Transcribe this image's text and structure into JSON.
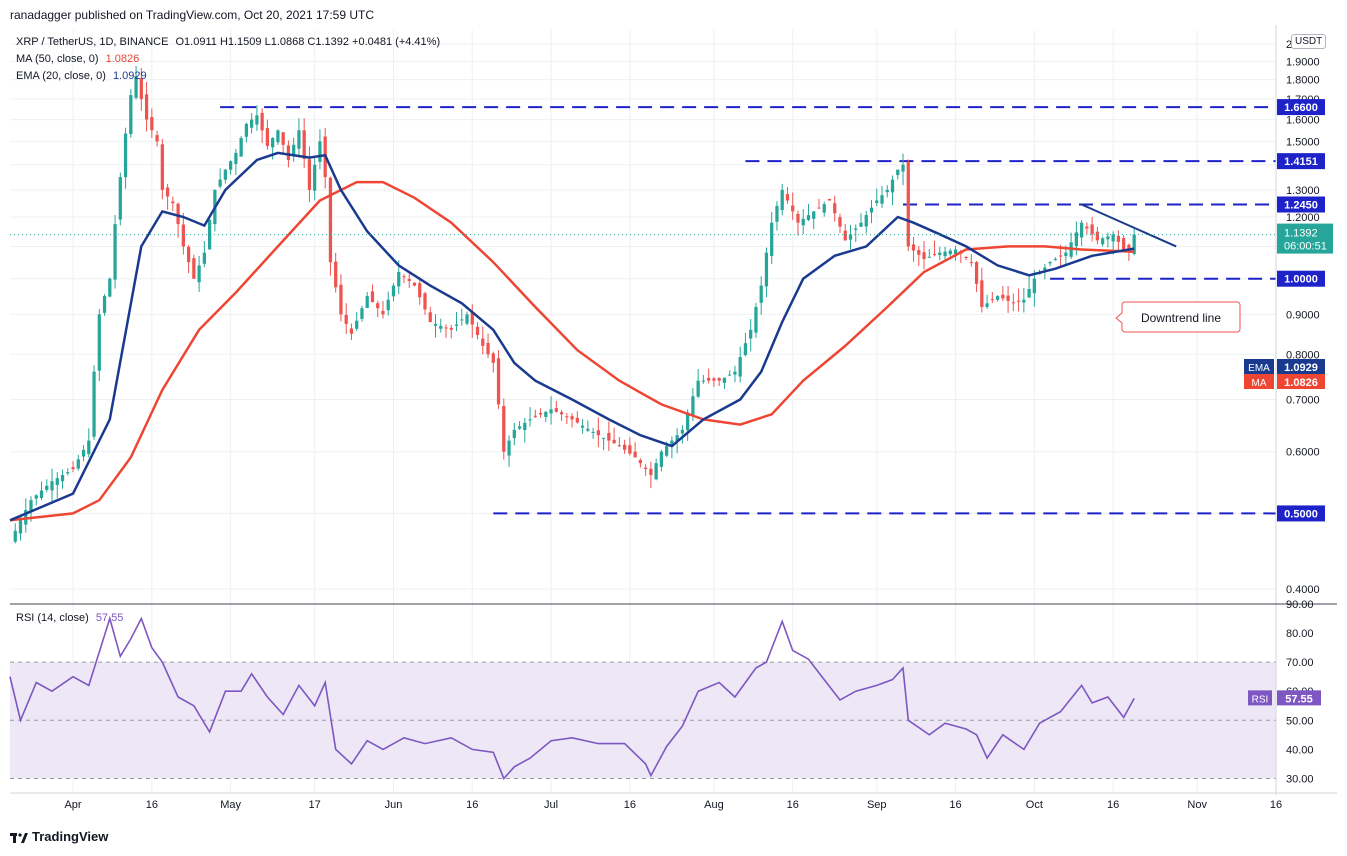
{
  "header": {
    "publisher_line": "ranadagger published on TradingView.com, Oct 20, 2021 17:59 UTC"
  },
  "legend": {
    "symbol": "XRP / TetherUS, 1D, BINANCE",
    "ohlc": "O1.0911 H1.1509 L1.0868 C1.1392 +0.0481 (+4.41%)",
    "ma_label": "MA (50, close, 0)",
    "ma_value": "1.0826",
    "ema_label": "EMA (20, close, 0)",
    "ema_value": "1.0929",
    "rsi_label": "RSI (14, close)",
    "rsi_value": "57.55"
  },
  "currency_badge": "USDT",
  "footer": {
    "brand": "TradingView"
  },
  "colors": {
    "up": "#26a69a",
    "down": "#ef5350",
    "ema": "#1a3a8f",
    "ma": "#ef4634",
    "level": "#1e22c9",
    "trend": "#1a3a8f",
    "rsi": "#7e57c2",
    "rsi_band": "#ede7f6",
    "grid": "#eef0f3",
    "text": "#131722"
  },
  "chart_data": [
    {
      "type": "candlestick",
      "title": "XRP / TetherUS, 1D, BINANCE",
      "ylim": [
        0.4,
        2.0
      ],
      "yscale": "log",
      "y_ticks": [
        "0.4000",
        "0.5000",
        "0.6000",
        "0.7000",
        "0.8000",
        "0.9000",
        "1.0000",
        "1.1000",
        "1.2000",
        "1.3000",
        "1.4000",
        "1.5000",
        "1.6000",
        "1.7000",
        "1.8000",
        "1.9000",
        "2"
      ],
      "x_ticks": [
        "Apr",
        "16",
        "May",
        "17",
        "Jun",
        "16",
        "Jul",
        "16",
        "Aug",
        "16",
        "Sep",
        "16",
        "Oct",
        "16",
        "Nov",
        "16"
      ],
      "x_range": [
        "2021-03-20",
        "2021-11-16"
      ],
      "price_path": [
        [
          "2021-03-20",
          0.46
        ],
        [
          "2021-03-24",
          0.52
        ],
        [
          "2021-03-28",
          0.55
        ],
        [
          "2021-04-01",
          0.57
        ],
        [
          "2021-04-04",
          0.62
        ],
        [
          "2021-04-06",
          0.9
        ],
        [
          "2021-04-08",
          1.0
        ],
        [
          "2021-04-10",
          1.35
        ],
        [
          "2021-04-12",
          1.72
        ],
        [
          "2021-04-13",
          1.82
        ],
        [
          "2021-04-14",
          1.7
        ],
        [
          "2021-04-15",
          1.6
        ],
        [
          "2021-04-17",
          1.5
        ],
        [
          "2021-04-18",
          1.3
        ],
        [
          "2021-04-20",
          1.25
        ],
        [
          "2021-04-22",
          1.1
        ],
        [
          "2021-04-24",
          1.0
        ],
        [
          "2021-04-26",
          1.08
        ],
        [
          "2021-04-28",
          1.3
        ],
        [
          "2021-04-30",
          1.38
        ],
        [
          "2021-05-02",
          1.45
        ],
        [
          "2021-05-04",
          1.58
        ],
        [
          "2021-05-06",
          1.62
        ],
        [
          "2021-05-08",
          1.48
        ],
        [
          "2021-05-10",
          1.55
        ],
        [
          "2021-05-12",
          1.42
        ],
        [
          "2021-05-14",
          1.55
        ],
        [
          "2021-05-16",
          1.3
        ],
        [
          "2021-05-18",
          1.5
        ],
        [
          "2021-05-19",
          1.35
        ],
        [
          "2021-05-20",
          1.05
        ],
        [
          "2021-05-22",
          0.9
        ],
        [
          "2021-05-24",
          0.85
        ],
        [
          "2021-05-27",
          0.95
        ],
        [
          "2021-05-30",
          0.9
        ],
        [
          "2021-06-02",
          1.02
        ],
        [
          "2021-06-05",
          0.98
        ],
        [
          "2021-06-08",
          0.88
        ],
        [
          "2021-06-12",
          0.86
        ],
        [
          "2021-06-15",
          0.9
        ],
        [
          "2021-06-18",
          0.82
        ],
        [
          "2021-06-20",
          0.78
        ],
        [
          "2021-06-22",
          0.6
        ],
        [
          "2021-06-24",
          0.64
        ],
        [
          "2021-06-27",
          0.66
        ],
        [
          "2021-07-01",
          0.68
        ],
        [
          "2021-07-05",
          0.66
        ],
        [
          "2021-07-10",
          0.63
        ],
        [
          "2021-07-14",
          0.61
        ],
        [
          "2021-07-17",
          0.59
        ],
        [
          "2021-07-20",
          0.56
        ],
        [
          "2021-07-22",
          0.6
        ],
        [
          "2021-07-26",
          0.64
        ],
        [
          "2021-07-29",
          0.74
        ],
        [
          "2021-08-02",
          0.74
        ],
        [
          "2021-08-05",
          0.76
        ],
        [
          "2021-08-08",
          0.86
        ],
        [
          "2021-08-10",
          0.98
        ],
        [
          "2021-08-12",
          1.18
        ],
        [
          "2021-08-14",
          1.3
        ],
        [
          "2021-08-17",
          1.18
        ],
        [
          "2021-08-20",
          1.22
        ],
        [
          "2021-08-23",
          1.26
        ],
        [
          "2021-08-26",
          1.12
        ],
        [
          "2021-08-29",
          1.18
        ],
        [
          "2021-09-01",
          1.26
        ],
        [
          "2021-09-03",
          1.3
        ],
        [
          "2021-09-05",
          1.38
        ],
        [
          "2021-09-06",
          1.4
        ],
        [
          "2021-09-07",
          1.1
        ],
        [
          "2021-09-10",
          1.06
        ],
        [
          "2021-09-13",
          1.08
        ],
        [
          "2021-09-16",
          1.09
        ],
        [
          "2021-09-19",
          1.05
        ],
        [
          "2021-09-21",
          0.92
        ],
        [
          "2021-09-24",
          0.95
        ],
        [
          "2021-09-27",
          0.93
        ],
        [
          "2021-09-29",
          0.94
        ],
        [
          "2021-10-01",
          1.0
        ],
        [
          "2021-10-04",
          1.05
        ],
        [
          "2021-10-07",
          1.08
        ],
        [
          "2021-10-10",
          1.18
        ],
        [
          "2021-10-13",
          1.12
        ],
        [
          "2021-10-16",
          1.14
        ],
        [
          "2021-10-18",
          1.09
        ],
        [
          "2021-10-19",
          1.09
        ],
        [
          "2021-10-20",
          1.1392
        ]
      ],
      "ema20": [
        [
          "2021-03-20",
          0.49
        ],
        [
          "2021-04-01",
          0.53
        ],
        [
          "2021-04-08",
          0.66
        ],
        [
          "2021-04-14",
          1.1
        ],
        [
          "2021-04-18",
          1.22
        ],
        [
          "2021-04-22",
          1.2
        ],
        [
          "2021-04-26",
          1.17
        ],
        [
          "2021-04-30",
          1.3
        ],
        [
          "2021-05-06",
          1.42
        ],
        [
          "2021-05-10",
          1.45
        ],
        [
          "2021-05-16",
          1.43
        ],
        [
          "2021-05-19",
          1.44
        ],
        [
          "2021-05-22",
          1.3
        ],
        [
          "2021-05-27",
          1.15
        ],
        [
          "2021-06-02",
          1.04
        ],
        [
          "2021-06-08",
          0.98
        ],
        [
          "2021-06-14",
          0.93
        ],
        [
          "2021-06-20",
          0.86
        ],
        [
          "2021-06-24",
          0.78
        ],
        [
          "2021-06-28",
          0.74
        ],
        [
          "2021-07-05",
          0.7
        ],
        [
          "2021-07-12",
          0.66
        ],
        [
          "2021-07-18",
          0.63
        ],
        [
          "2021-07-24",
          0.61
        ],
        [
          "2021-07-30",
          0.66
        ],
        [
          "2021-08-06",
          0.7
        ],
        [
          "2021-08-10",
          0.76
        ],
        [
          "2021-08-14",
          0.88
        ],
        [
          "2021-08-18",
          1.0
        ],
        [
          "2021-08-24",
          1.07
        ],
        [
          "2021-08-30",
          1.1
        ],
        [
          "2021-09-05",
          1.2
        ],
        [
          "2021-09-08",
          1.18
        ],
        [
          "2021-09-13",
          1.14
        ],
        [
          "2021-09-18",
          1.1
        ],
        [
          "2021-09-24",
          1.04
        ],
        [
          "2021-09-30",
          1.01
        ],
        [
          "2021-10-05",
          1.03
        ],
        [
          "2021-10-12",
          1.07
        ],
        [
          "2021-10-20",
          1.0929
        ]
      ],
      "ma50": [
        [
          "2021-03-20",
          0.49
        ],
        [
          "2021-04-01",
          0.5
        ],
        [
          "2021-04-06",
          0.52
        ],
        [
          "2021-04-12",
          0.59
        ],
        [
          "2021-04-18",
          0.72
        ],
        [
          "2021-04-25",
          0.86
        ],
        [
          "2021-05-02",
          0.96
        ],
        [
          "2021-05-10",
          1.1
        ],
        [
          "2021-05-18",
          1.26
        ],
        [
          "2021-05-25",
          1.33
        ],
        [
          "2021-05-30",
          1.33
        ],
        [
          "2021-06-05",
          1.27
        ],
        [
          "2021-06-12",
          1.18
        ],
        [
          "2021-06-20",
          1.05
        ],
        [
          "2021-06-28",
          0.92
        ],
        [
          "2021-07-06",
          0.81
        ],
        [
          "2021-07-14",
          0.74
        ],
        [
          "2021-07-22",
          0.69
        ],
        [
          "2021-07-30",
          0.66
        ],
        [
          "2021-08-06",
          0.65
        ],
        [
          "2021-08-12",
          0.67
        ],
        [
          "2021-08-18",
          0.74
        ],
        [
          "2021-08-26",
          0.82
        ],
        [
          "2021-09-03",
          0.92
        ],
        [
          "2021-09-10",
          1.02
        ],
        [
          "2021-09-18",
          1.09
        ],
        [
          "2021-09-26",
          1.1
        ],
        [
          "2021-10-03",
          1.1
        ],
        [
          "2021-10-10",
          1.09
        ],
        [
          "2021-10-20",
          1.0826
        ]
      ],
      "levels": [
        {
          "value": 1.66,
          "label": "1.6600",
          "from": "2021-04-29",
          "to": "2021-11-16"
        },
        {
          "value": 1.4151,
          "label": "1.4151",
          "from": "2021-08-07",
          "to": "2021-11-16"
        },
        {
          "value": 1.245,
          "label": "1.2450",
          "from": "2021-09-06",
          "to": "2021-11-16"
        },
        {
          "value": 1.0,
          "label": "1.0000",
          "from": "2021-10-04",
          "to": "2021-11-16"
        },
        {
          "value": 0.5,
          "label": "0.5000",
          "from": "2021-06-20",
          "to": "2021-11-16"
        }
      ],
      "trendline": {
        "label": "Downtrend line",
        "from": [
          "2021-10-10",
          1.245
        ],
        "to": [
          "2021-10-28",
          1.1
        ]
      },
      "price_badges": [
        {
          "label": "1.1392",
          "sub": "06:00:51",
          "value": 1.1392,
          "color": "#26a69a"
        },
        {
          "label": "1.0929",
          "tag": "EMA",
          "value": 1.0929,
          "color": "#1a3a8f"
        },
        {
          "label": "1.0826",
          "tag": "MA",
          "value": 1.0826,
          "color": "#ef4634"
        }
      ]
    },
    {
      "type": "line",
      "title": "RSI (14, close)",
      "ylim": [
        25,
        90
      ],
      "y_ticks": [
        "30.00",
        "40.00",
        "50.00",
        "60.00",
        "70.00",
        "80.00",
        "90.00"
      ],
      "band": [
        30,
        70
      ],
      "series": [
        {
          "name": "RSI",
          "values": [
            [
              "2021-03-20",
              65
            ],
            [
              "2021-03-22",
              50
            ],
            [
              "2021-03-25",
              63
            ],
            [
              "2021-03-28",
              60
            ],
            [
              "2021-04-01",
              65
            ],
            [
              "2021-04-04",
              62
            ],
            [
              "2021-04-08",
              85
            ],
            [
              "2021-04-10",
              72
            ],
            [
              "2021-04-12",
              78
            ],
            [
              "2021-04-14",
              85
            ],
            [
              "2021-04-16",
              75
            ],
            [
              "2021-04-18",
              70
            ],
            [
              "2021-04-21",
              58
            ],
            [
              "2021-04-24",
              55
            ],
            [
              "2021-04-27",
              46
            ],
            [
              "2021-04-30",
              60
            ],
            [
              "2021-05-03",
              60
            ],
            [
              "2021-05-05",
              66
            ],
            [
              "2021-05-08",
              58
            ],
            [
              "2021-05-11",
              52
            ],
            [
              "2021-05-14",
              62
            ],
            [
              "2021-05-17",
              55
            ],
            [
              "2021-05-19",
              63
            ],
            [
              "2021-05-21",
              40
            ],
            [
              "2021-05-24",
              35
            ],
            [
              "2021-05-27",
              43
            ],
            [
              "2021-05-30",
              40
            ],
            [
              "2021-06-03",
              44
            ],
            [
              "2021-06-07",
              42
            ],
            [
              "2021-06-12",
              44
            ],
            [
              "2021-06-16",
              40
            ],
            [
              "2021-06-20",
              39
            ],
            [
              "2021-06-22",
              30
            ],
            [
              "2021-06-24",
              34
            ],
            [
              "2021-06-27",
              37
            ],
            [
              "2021-07-01",
              43
            ],
            [
              "2021-07-05",
              44
            ],
            [
              "2021-07-10",
              42
            ],
            [
              "2021-07-15",
              42
            ],
            [
              "2021-07-19",
              35
            ],
            [
              "2021-07-20",
              31
            ],
            [
              "2021-07-23",
              41
            ],
            [
              "2021-07-26",
              48
            ],
            [
              "2021-07-29",
              60
            ],
            [
              "2021-08-02",
              63
            ],
            [
              "2021-08-05",
              58
            ],
            [
              "2021-08-09",
              68
            ],
            [
              "2021-08-11",
              70
            ],
            [
              "2021-08-14",
              84
            ],
            [
              "2021-08-16",
              74
            ],
            [
              "2021-08-19",
              71
            ],
            [
              "2021-08-22",
              64
            ],
            [
              "2021-08-25",
              57
            ],
            [
              "2021-08-28",
              60
            ],
            [
              "2021-09-01",
              62
            ],
            [
              "2021-09-04",
              64
            ],
            [
              "2021-09-06",
              68
            ],
            [
              "2021-09-07",
              50
            ],
            [
              "2021-09-11",
              45
            ],
            [
              "2021-09-14",
              49
            ],
            [
              "2021-09-18",
              47
            ],
            [
              "2021-09-20",
              45
            ],
            [
              "2021-09-22",
              37
            ],
            [
              "2021-09-25",
              45
            ],
            [
              "2021-09-29",
              40
            ],
            [
              "2021-10-02",
              49
            ],
            [
              "2021-10-06",
              53
            ],
            [
              "2021-10-10",
              62
            ],
            [
              "2021-10-12",
              56
            ],
            [
              "2021-10-15",
              58
            ],
            [
              "2021-10-18",
              51
            ],
            [
              "2021-10-20",
              57.55
            ]
          ]
        }
      ]
    }
  ]
}
